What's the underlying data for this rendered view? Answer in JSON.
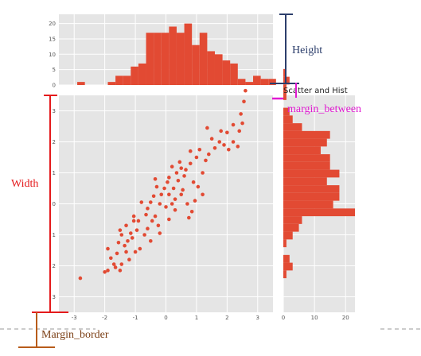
{
  "title": "Scatter and Hist",
  "annotations": {
    "height": "Height",
    "width": "Width",
    "margin_between": "margin_between",
    "margin_border": "Margin_border"
  },
  "colors": {
    "bar": "#e24a33",
    "panel_bg": "#e5e5e5",
    "grid": "#ffffff",
    "height_marker": "#2c3e6b",
    "width_marker": "#e41a1c",
    "margin_between_marker": "#e01ad1",
    "margin_border_marker": "#b85c1a"
  },
  "chart_data": [
    {
      "type": "scatter",
      "xlim": [
        -3.5,
        3.5
      ],
      "ylim": [
        -3.5,
        3.5
      ],
      "xticks": [
        "-3",
        "-2",
        "-1",
        "0",
        "1",
        "2",
        "3"
      ],
      "yticks": [
        "3",
        "2",
        "1",
        "0",
        "1",
        "2",
        "3"
      ],
      "grid": true,
      "points": [
        [
          -2.8,
          -2.4
        ],
        [
          -2.0,
          -2.2
        ],
        [
          -1.9,
          -2.15
        ],
        [
          -1.65,
          -2.05
        ],
        [
          -1.7,
          -1.95
        ],
        [
          -1.5,
          -2.15
        ],
        [
          -1.45,
          -1.95
        ],
        [
          -1.8,
          -1.75
        ],
        [
          -1.6,
          -1.6
        ],
        [
          -1.3,
          -1.55
        ],
        [
          -1.55,
          -1.25
        ],
        [
          -1.25,
          -1.2
        ],
        [
          -1.45,
          -1.0
        ],
        [
          -1.15,
          -0.95
        ],
        [
          -1.0,
          -1.55
        ],
        [
          -0.85,
          -1.45
        ],
        [
          -1.1,
          -1.1
        ],
        [
          -0.95,
          -0.85
        ],
        [
          -1.3,
          -0.7
        ],
        [
          -1.05,
          -0.55
        ],
        [
          -1.5,
          -0.85
        ],
        [
          -0.9,
          -0.55
        ],
        [
          -1.05,
          -0.4
        ],
        [
          -0.7,
          -1.0
        ],
        [
          -0.6,
          -0.8
        ],
        [
          -0.65,
          -0.35
        ],
        [
          -0.45,
          -0.55
        ],
        [
          -0.6,
          -0.15
        ],
        [
          -0.5,
          0.05
        ],
        [
          -0.35,
          -0.4
        ],
        [
          -0.25,
          -0.7
        ],
        [
          -0.4,
          0.25
        ],
        [
          -0.2,
          0.0
        ],
        [
          -0.15,
          0.3
        ],
        [
          -0.3,
          0.55
        ],
        [
          0.0,
          -0.1
        ],
        [
          0.1,
          -0.5
        ],
        [
          -0.05,
          0.5
        ],
        [
          0.1,
          0.3
        ],
        [
          0.2,
          0.0
        ],
        [
          0.25,
          0.5
        ],
        [
          0.3,
          -0.2
        ],
        [
          0.4,
          0.75
        ],
        [
          0.5,
          0.3
        ],
        [
          0.1,
          0.85
        ],
        [
          0.35,
          1.0
        ],
        [
          0.6,
          0.9
        ],
        [
          0.55,
          0.45
        ],
        [
          0.7,
          0.0
        ],
        [
          0.2,
          1.2
        ],
        [
          0.45,
          1.35
        ],
        [
          0.65,
          1.1
        ],
        [
          0.8,
          1.3
        ],
        [
          0.9,
          0.7
        ],
        [
          1.0,
          1.5
        ],
        [
          0.8,
          1.7
        ],
        [
          1.1,
          1.75
        ],
        [
          1.2,
          1.0
        ],
        [
          1.3,
          1.4
        ],
        [
          1.4,
          1.6
        ],
        [
          1.6,
          1.8
        ],
        [
          1.5,
          2.1
        ],
        [
          1.75,
          2.0
        ],
        [
          1.9,
          1.9
        ],
        [
          2.0,
          2.3
        ],
        [
          1.8,
          2.35
        ],
        [
          2.2,
          2.0
        ],
        [
          1.35,
          2.45
        ],
        [
          2.05,
          1.75
        ],
        [
          2.2,
          2.55
        ],
        [
          2.35,
          1.85
        ],
        [
          2.5,
          2.6
        ],
        [
          2.45,
          2.9
        ],
        [
          2.55,
          3.3
        ],
        [
          2.6,
          3.65
        ],
        [
          2.4,
          2.35
        ],
        [
          1.2,
          0.3
        ],
        [
          0.95,
          0.1
        ],
        [
          0.75,
          -0.45
        ],
        [
          -0.8,
          0.05
        ],
        [
          -0.2,
          -0.95
        ],
        [
          0.05,
          0.7
        ],
        [
          0.5,
          1.15
        ],
        [
          -1.35,
          -1.35
        ],
        [
          -1.9,
          -1.45
        ],
        [
          0.85,
          -0.25
        ],
        [
          1.05,
          0.55
        ],
        [
          -0.5,
          -1.2
        ],
        [
          -1.2,
          -1.8
        ],
        [
          0.3,
          0.15
        ],
        [
          -0.35,
          0.8
        ]
      ]
    },
    {
      "type": "bar",
      "orientation": "vertical",
      "xlim": [
        -3.5,
        3.5
      ],
      "ylim": [
        0,
        23
      ],
      "yticks": [
        "0",
        "5",
        "10",
        "15",
        "20"
      ],
      "grid": true,
      "bin_start": -2.9,
      "bin_width": 0.25,
      "values": [
        1,
        0,
        0,
        0,
        1,
        3,
        3,
        6,
        7,
        17,
        17,
        17,
        19,
        17,
        20,
        13,
        17,
        11,
        10,
        8,
        7,
        2,
        1,
        3,
        2,
        2
      ]
    },
    {
      "type": "bar",
      "orientation": "horizontal",
      "xlim": [
        0,
        23
      ],
      "xticks": [
        "0",
        "10",
        "20"
      ],
      "ylim": [
        -3.5,
        3.5
      ],
      "grid": true,
      "bin_start": -2.4,
      "bin_width": 0.25,
      "values": [
        1,
        3,
        2,
        0,
        1,
        3,
        5,
        6,
        23,
        16,
        18,
        18,
        14,
        18,
        15,
        15,
        12,
        14,
        15,
        6,
        3,
        2,
        0,
        1,
        1,
        2,
        1
      ]
    }
  ]
}
